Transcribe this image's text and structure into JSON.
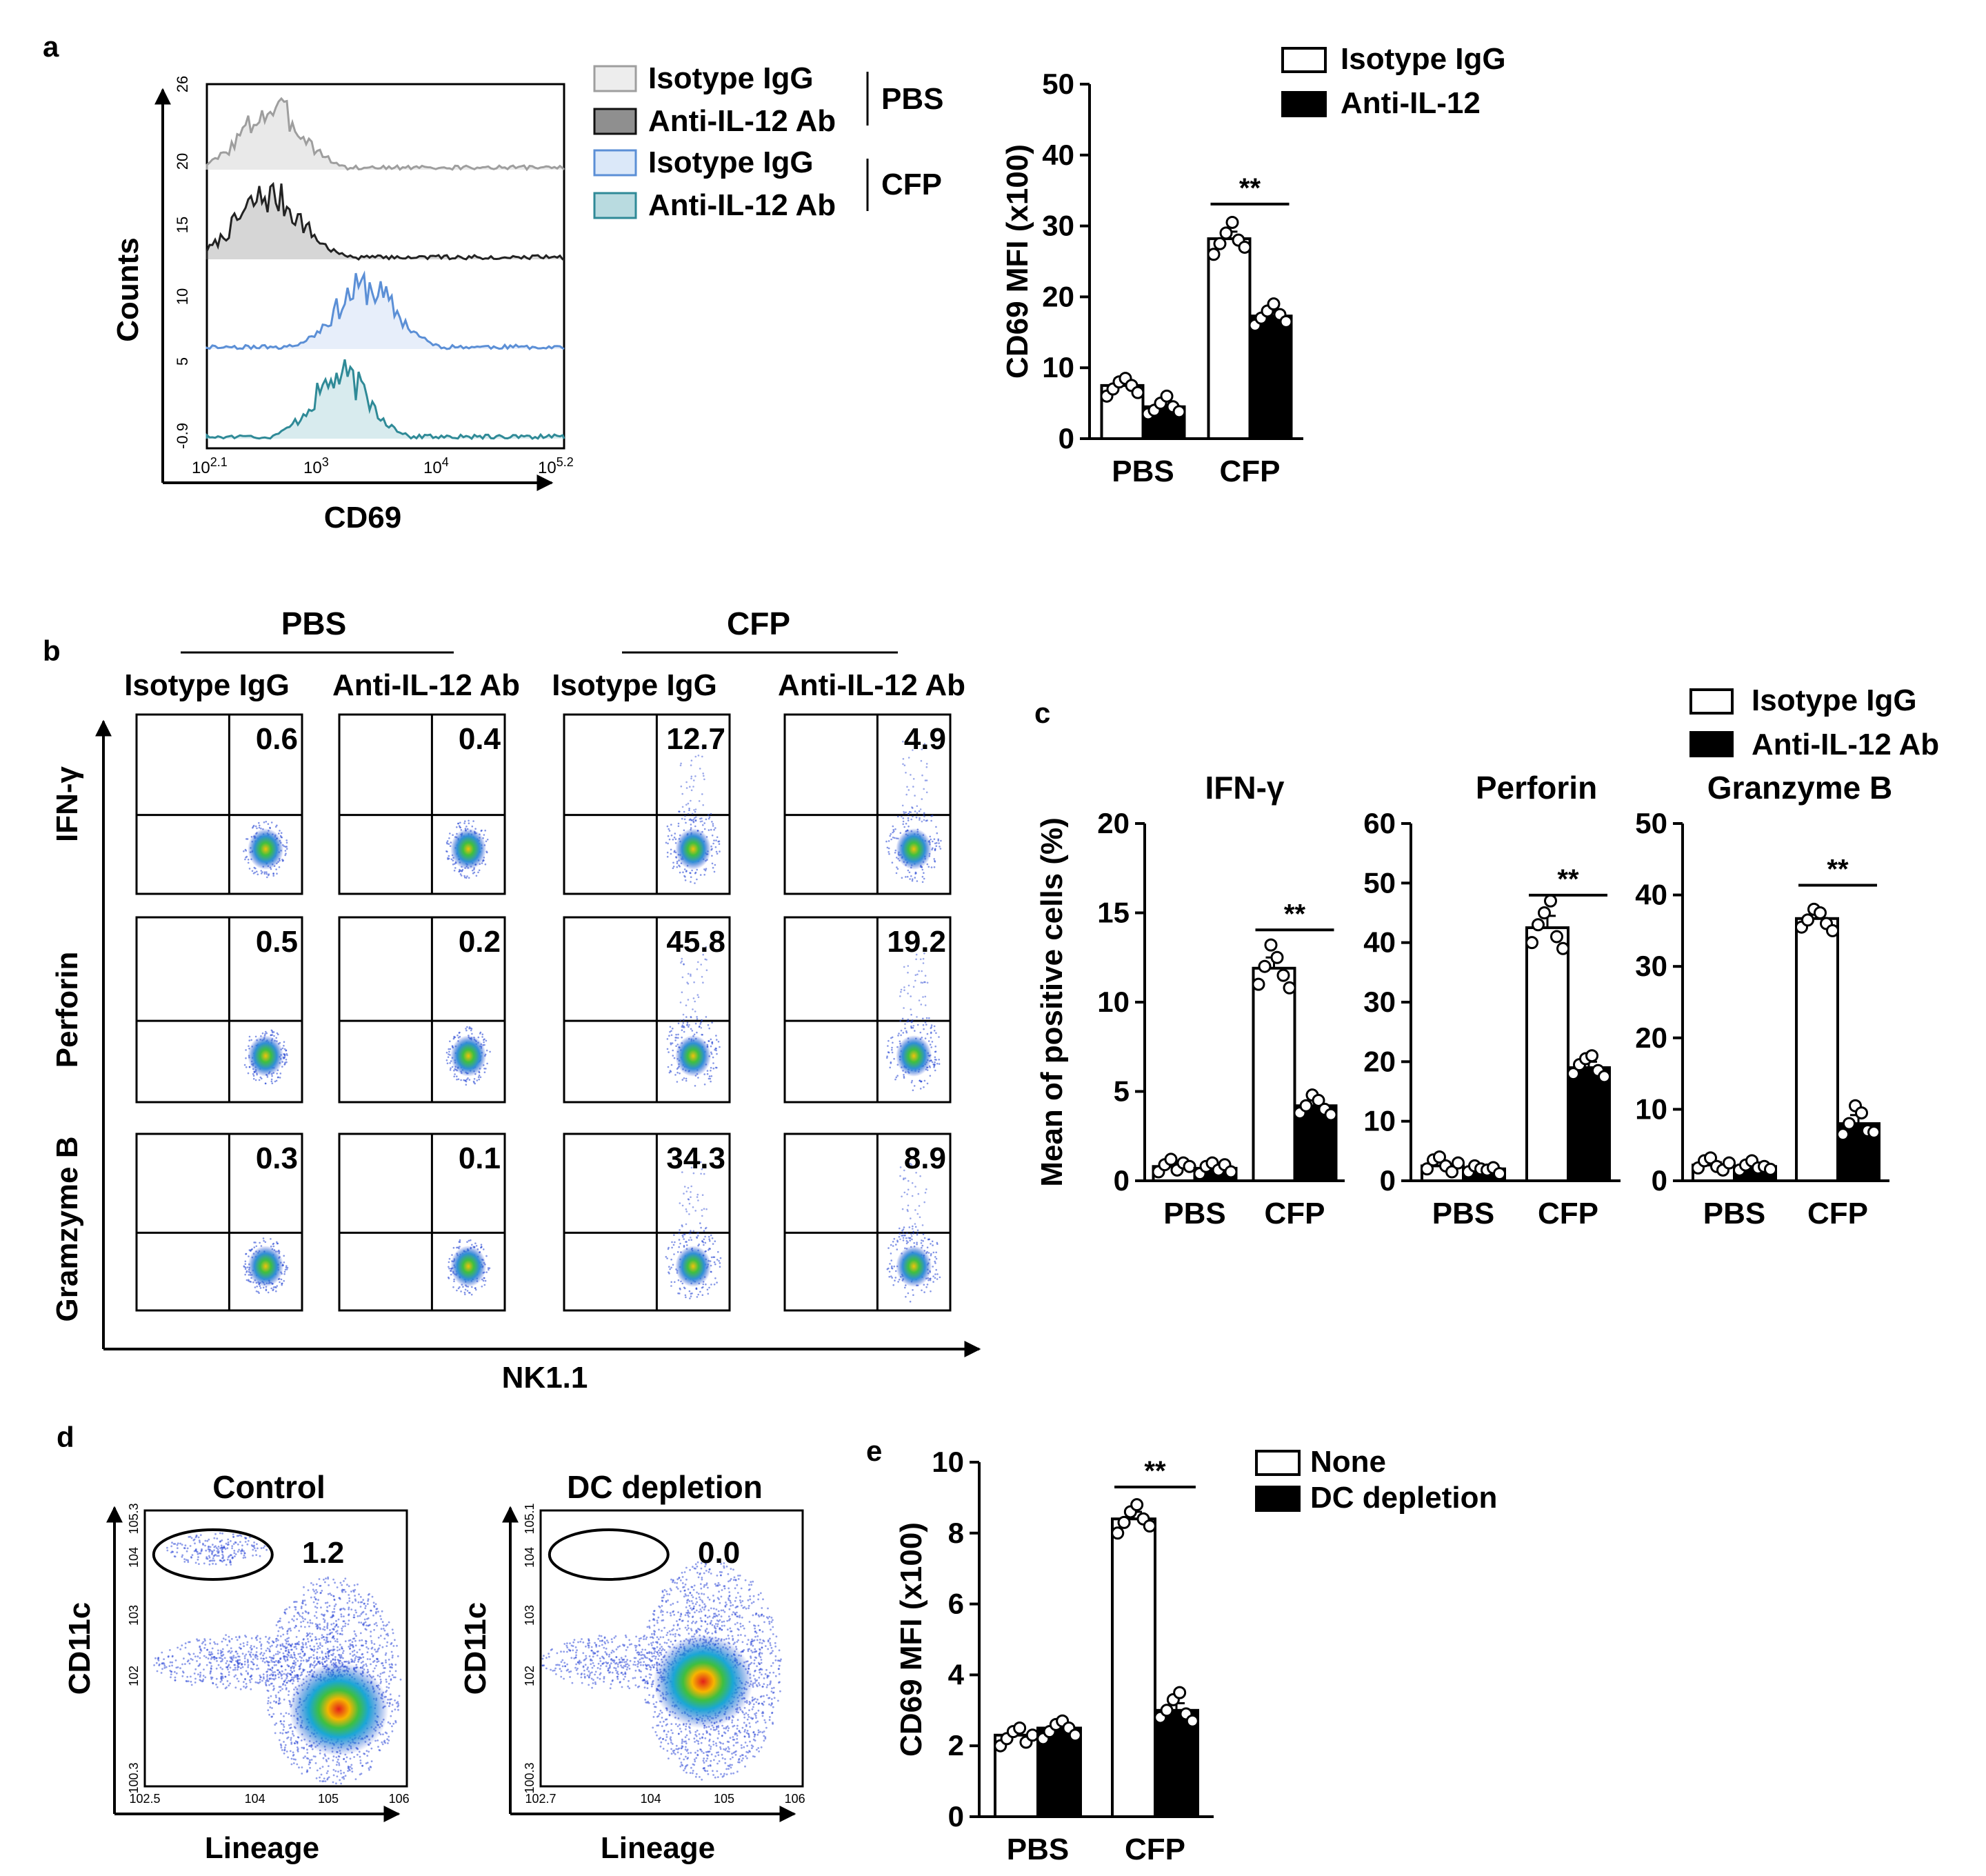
{
  "colors": {
    "pbs_isotype": "#9e9e9e",
    "pbs_anti": "#222222",
    "cfp_isotype": "#5b8fd6",
    "cfp_anti": "#2f8a97",
    "white_bar": "#ffffff",
    "black_bar": "#000000"
  },
  "panel_a": {
    "label": "a",
    "histogram": {
      "ylabel": "Counts",
      "xlabel": "CD69",
      "y_ticks": [
        "26",
        "20",
        "15",
        "10",
        "5",
        "-0.9"
      ],
      "x_ticks": [
        {
          "base": "10",
          "exp": "2.1"
        },
        {
          "base": "10",
          "exp": "3"
        },
        {
          "base": "10",
          "exp": "4"
        },
        {
          "base": "10",
          "exp": "5.2"
        }
      ],
      "legend": [
        {
          "label": "Isotype IgG",
          "group": "PBS"
        },
        {
          "label": "Anti-IL-12 Ab",
          "group": "PBS"
        },
        {
          "label": "Isotype IgG",
          "group": "CFP"
        },
        {
          "label": "Anti-IL-12 Ab",
          "group": "CFP"
        }
      ],
      "group_labels": [
        "PBS",
        "CFP"
      ]
    }
  },
  "chart_data": [
    {
      "id": "a_bar",
      "type": "bar",
      "categories": [
        "PBS",
        "CFP"
      ],
      "ylabel": "CD69 MFI (x100)",
      "ylim": [
        0,
        50
      ],
      "yticks": [
        0,
        10,
        20,
        30,
        40,
        50
      ],
      "series": [
        {
          "name": "Isotype IgG",
          "values": [
            7.5,
            28.2
          ],
          "sem": [
            1.0,
            1.0
          ]
        },
        {
          "name": "Anti-IL-12",
          "values": [
            4.5,
            17.3
          ],
          "sem": [
            0.8,
            0.8
          ]
        }
      ],
      "points": [
        [
          [
            6.0,
            7.0,
            8.0,
            8.5,
            7.5,
            6.5
          ],
          [
            26.0,
            27.5,
            29.0,
            30.5,
            28.0,
            27.0
          ]
        ],
        [
          [
            3.5,
            4.0,
            5.0,
            6.0,
            4.5,
            3.8
          ],
          [
            16.0,
            17.0,
            18.0,
            19.0,
            17.5,
            16.5
          ]
        ]
      ],
      "significance": "**",
      "legend_position": "top-right"
    },
    {
      "id": "c_ifn",
      "type": "bar",
      "title": "IFN-γ",
      "categories": [
        "PBS",
        "CFP"
      ],
      "ylabel": "Mean of positive cells (%)",
      "ylim": [
        0,
        20
      ],
      "yticks": [
        0,
        5,
        10,
        15,
        20
      ],
      "series": [
        {
          "name": "Isotype IgG",
          "values": [
            0.8,
            11.9
          ],
          "sem": [
            0.2,
            0.6
          ]
        },
        {
          "name": "Anti-IL-12 Ab",
          "values": [
            0.7,
            4.2
          ],
          "sem": [
            0.2,
            0.3
          ]
        }
      ],
      "points": [
        [
          [
            0.5,
            0.9,
            1.2,
            0.6,
            1.0,
            0.8
          ],
          [
            11.0,
            12.0,
            13.2,
            12.5,
            11.5,
            10.8
          ]
        ],
        [
          [
            0.4,
            0.8,
            1.0,
            0.6,
            0.9,
            0.5
          ],
          [
            3.8,
            4.2,
            4.8,
            4.5,
            4.0,
            3.7
          ]
        ]
      ],
      "significance": "**"
    },
    {
      "id": "c_perforin",
      "type": "bar",
      "title": "Perforin",
      "categories": [
        "PBS",
        "CFP"
      ],
      "ylim": [
        0,
        60
      ],
      "yticks": [
        0,
        10,
        20,
        30,
        40,
        50,
        60
      ],
      "series": [
        {
          "name": "Isotype IgG",
          "values": [
            2.5,
            42.5
          ],
          "sem": [
            0.6,
            2.0
          ]
        },
        {
          "name": "Anti-IL-12 Ab",
          "values": [
            2.0,
            19.0
          ],
          "sem": [
            0.4,
            1.0
          ]
        }
      ],
      "points": [
        [
          [
            2.0,
            3.5,
            4.0,
            2.5,
            1.5,
            3.0
          ],
          [
            40.0,
            43.0,
            45.0,
            47.0,
            41.0,
            39.0
          ]
        ],
        [
          [
            1.5,
            2.5,
            2.0,
            1.8,
            2.2,
            1.2
          ],
          [
            18.0,
            19.5,
            20.5,
            21.0,
            18.5,
            17.5
          ]
        ]
      ],
      "significance": "**"
    },
    {
      "id": "c_granzyme",
      "type": "bar",
      "title": "Granzyme B",
      "categories": [
        "PBS",
        "CFP"
      ],
      "ylim": [
        0,
        50
      ],
      "yticks": [
        0,
        10,
        20,
        30,
        40,
        50
      ],
      "series": [
        {
          "name": "Isotype IgG",
          "values": [
            2.2,
            36.7
          ],
          "sem": [
            0.4,
            0.8
          ]
        },
        {
          "name": "Anti-IL-12 Ab",
          "values": [
            2.0,
            8.0
          ],
          "sem": [
            0.3,
            1.2
          ]
        }
      ],
      "points": [
        [
          [
            1.8,
            2.8,
            3.2,
            2.0,
            1.5,
            2.5
          ],
          [
            35.5,
            36.5,
            38.0,
            37.5,
            36.0,
            35.0
          ]
        ],
        [
          [
            1.5,
            2.2,
            2.8,
            1.8,
            2.0,
            1.6
          ],
          [
            6.5,
            8.0,
            10.5,
            9.5,
            7.0,
            6.8
          ]
        ]
      ],
      "significance": "**"
    },
    {
      "id": "e_bar",
      "type": "bar",
      "categories": [
        "PBS",
        "CFP"
      ],
      "ylabel": "CD69 MFI (x100)",
      "ylim": [
        0,
        10
      ],
      "yticks": [
        0,
        2,
        4,
        6,
        8,
        10
      ],
      "series": [
        {
          "name": "None",
          "values": [
            2.3,
            8.4
          ],
          "sem": [
            0.15,
            0.2
          ]
        },
        {
          "name": "DC depletion",
          "values": [
            2.5,
            3.0
          ],
          "sem": [
            0.15,
            0.2
          ]
        }
      ],
      "points": [
        [
          [
            2.0,
            2.2,
            2.4,
            2.5,
            2.1,
            2.3
          ],
          [
            8.0,
            8.3,
            8.6,
            8.8,
            8.4,
            8.2
          ]
        ],
        [
          [
            2.2,
            2.4,
            2.6,
            2.7,
            2.5,
            2.3
          ],
          [
            2.8,
            3.0,
            3.3,
            3.5,
            2.9,
            2.7
          ]
        ]
      ],
      "significance": "**"
    }
  ],
  "panel_b": {
    "label": "b",
    "group_headers": [
      "PBS",
      "CFP"
    ],
    "column_headers": [
      "Isotype IgG",
      "Anti-IL-12 Ab",
      "Isotype IgG",
      "Anti-IL-12 Ab"
    ],
    "row_labels": [
      "IFN-γ",
      "Perforin",
      "Gramzyme B"
    ],
    "xlabel": "NK1.1",
    "values": [
      [
        "0.6",
        "0.4",
        "12.7",
        "4.9"
      ],
      [
        "0.5",
        "0.2",
        "45.8",
        "19.2"
      ],
      [
        "0.3",
        "0.1",
        "34.3",
        "8.9"
      ]
    ]
  },
  "panel_c": {
    "label": "c",
    "legend": [
      "Isotype IgG",
      "Anti-IL-12 Ab"
    ]
  },
  "panel_d": {
    "label": "d",
    "plots": [
      {
        "title": "Control",
        "value": "1.2",
        "xlabel": "Lineage",
        "ylabel": "CD11c",
        "x_ticks": [
          "10^2.5",
          "10^4",
          "10^5",
          "10^6"
        ],
        "y_ticks": [
          "10^5.3",
          "10^4",
          "10^3",
          "10^2",
          "10^0.3"
        ]
      },
      {
        "title": "DC depletion",
        "value": "0.0",
        "xlabel": "Lineage",
        "ylabel": "CD11c",
        "x_ticks": [
          "10^2.7",
          "10^4",
          "10^5",
          "10^6"
        ],
        "y_ticks": [
          "10^5.1",
          "10^4",
          "10^3",
          "10^2",
          "10^0.3"
        ]
      }
    ]
  },
  "panel_e": {
    "label": "e"
  }
}
